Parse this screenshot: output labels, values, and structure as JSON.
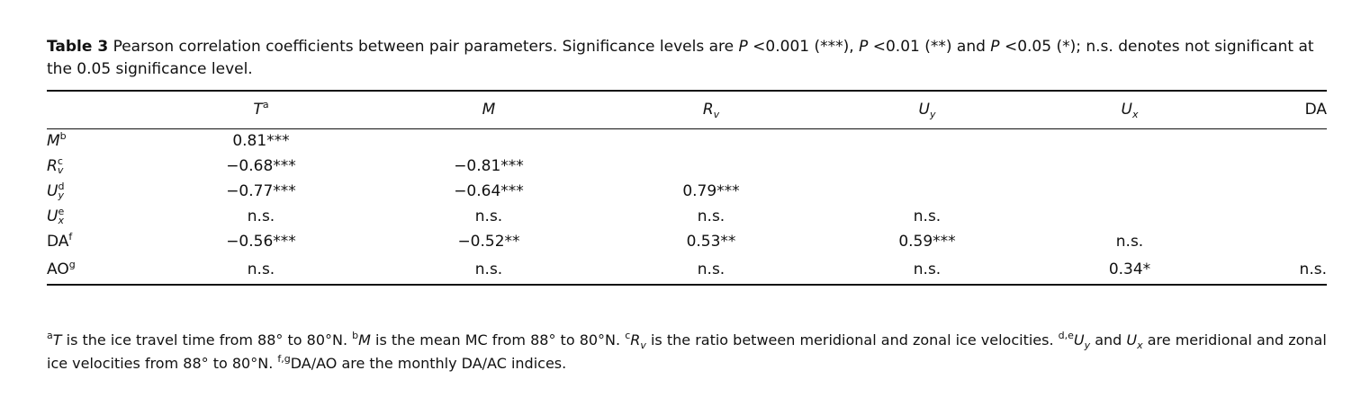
{
  "caption": {
    "label": "Table 3",
    "parts": [
      "Pearson correlation coefficients between pair parameters. Significance levels are ",
      "P",
      " <0.001 (***), ",
      "P",
      " <0.01 (**) and ",
      "P",
      " <0.05 (*); n.s. denotes not significant at the 0.05 significance level."
    ]
  },
  "table": {
    "columns": [
      {
        "symbol": "T",
        "italic": true,
        "sup": "a"
      },
      {
        "symbol": "M",
        "italic": true
      },
      {
        "symbol": "R",
        "italic": true,
        "sub": "v"
      },
      {
        "symbol": "U",
        "italic": true,
        "sub": "y"
      },
      {
        "symbol": "U",
        "italic": true,
        "sub": "x"
      },
      {
        "symbol": "DA",
        "italic": false
      }
    ],
    "rows": [
      {
        "label": {
          "symbol": "M",
          "italic": true,
          "sup": "b"
        },
        "cells": [
          "0.81***"
        ]
      },
      {
        "label": {
          "symbol": "R",
          "italic": true,
          "sup": "c",
          "sub": "v"
        },
        "cells": [
          "−0.68***",
          "−0.81***"
        ]
      },
      {
        "label": {
          "symbol": "U",
          "italic": true,
          "sup": "d",
          "sub": "y"
        },
        "cells": [
          "−0.77***",
          "−0.64***",
          "0.79***"
        ]
      },
      {
        "label": {
          "symbol": "U",
          "italic": true,
          "sup": "e",
          "sub": "x"
        },
        "cells": [
          "n.s.",
          "n.s.",
          "n.s.",
          "n.s."
        ]
      },
      {
        "label": {
          "symbol": "DA",
          "italic": false,
          "sup": "f"
        },
        "cells": [
          "−0.56***",
          "−0.52**",
          "0.53**",
          "0.59***",
          "n.s."
        ]
      },
      {
        "label": {
          "symbol": "AO",
          "italic": false,
          "sup": "g"
        },
        "cells": [
          "n.s.",
          "n.s.",
          "n.s.",
          "n.s.",
          "0.34*",
          "n.s."
        ]
      }
    ]
  },
  "footnote": {
    "parts": [
      "a",
      "T",
      " is the ice travel time from 88° to 80°N. ",
      "b",
      "M",
      " is the mean MC from 88° to 80°N. ",
      "c",
      "R",
      "v",
      " is the ratio between meridional and zonal ice velocities. ",
      "d,e",
      "U",
      "y",
      " and ",
      "U",
      "x",
      " are meridional and zonal ice velocities from 88° to 80°N. ",
      "f,g",
      "DA/AO are the monthly DA/AC indices."
    ]
  }
}
